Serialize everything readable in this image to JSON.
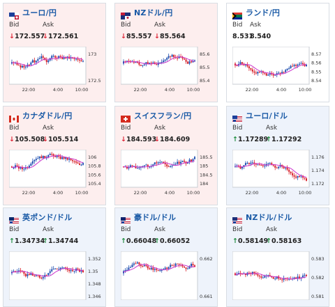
{
  "cards": [
    {
      "pair": "ユーロ/円",
      "flag": "eu-flag",
      "dir": "down",
      "bid": "172.557",
      "ask": "172.561",
      "ticks": [
        "173",
        "172.5"
      ],
      "times": [
        "22:00",
        "4:00",
        "10:00"
      ]
    },
    {
      "pair": "NZドル/円",
      "flag": "nz-flag",
      "dir": "down",
      "bid": "85.557",
      "ask": "85.564",
      "ticks": [
        "85.6",
        "85.5",
        "85.4"
      ],
      "times": [
        "22:00",
        "4:00",
        "10:00"
      ]
    },
    {
      "pair": "ランド/円",
      "flag": "za-flag",
      "dir": "flat",
      "bid": "8.531",
      "ask": "8.540",
      "ticks": [
        "8.57",
        "8.56",
        "8.55",
        "8.54"
      ],
      "times": [
        "22:00",
        "4:00",
        "10:00"
      ]
    },
    {
      "pair": "カナダドル/円",
      "flag": "ca-flag",
      "dir": "down",
      "bid": "105.508",
      "ask": "105.514",
      "ticks": [
        "106",
        "105.8",
        "105.6",
        "105.4"
      ],
      "times": [
        "22:00",
        "4:00",
        "10:00"
      ]
    },
    {
      "pair": "スイスフラン/円",
      "flag": "ch-flag",
      "dir": "down",
      "bid": "184.593",
      "ask": "184.609",
      "ticks": [
        "185.5",
        "185",
        "184.5",
        "184"
      ],
      "times": [
        "22:00",
        "4:00",
        "10:00"
      ]
    },
    {
      "pair": "ユーロ/ドル",
      "flag": "eu-us-flag",
      "dir": "up",
      "bid": "1.17289",
      "ask": "1.17292",
      "ticks": [
        "1.176",
        "1.174",
        "1.172"
      ],
      "times": [
        "22:00",
        "4:00",
        "10:00"
      ]
    },
    {
      "pair": "英ポンド/ドル",
      "flag": "uk-us-flag",
      "dir": "up",
      "bid": "1.34734",
      "ask": "1.34744",
      "ticks": [
        "1.352",
        "1.35",
        "1.348",
        "1.346"
      ],
      "times": []
    },
    {
      "pair": "豪ドル/ドル",
      "flag": "au-us-flag",
      "dir": "up",
      "bid": "0.66048",
      "ask": "0.66052",
      "ticks": [
        "0.662",
        "0.661"
      ],
      "times": []
    },
    {
      "pair": "NZドル/ドル",
      "flag": "nz-us-flag",
      "dir": "up",
      "bid": "0.58149",
      "ask": "0.58163",
      "ticks": [
        "0.583",
        "0.582",
        "0.581"
      ],
      "times": []
    }
  ],
  "labels": {
    "bid": "Bid",
    "ask": "Ask",
    "down_arrow": "↓",
    "up_arrow": "↑"
  },
  "colors": {
    "down_bg": "#fdeeee",
    "up_bg": "#eef3fb",
    "up_candle": "#1f4fb0",
    "down_candle": "#d8222c",
    "ma_line": "#cc33cc",
    "link": "#1a5aa6"
  }
}
